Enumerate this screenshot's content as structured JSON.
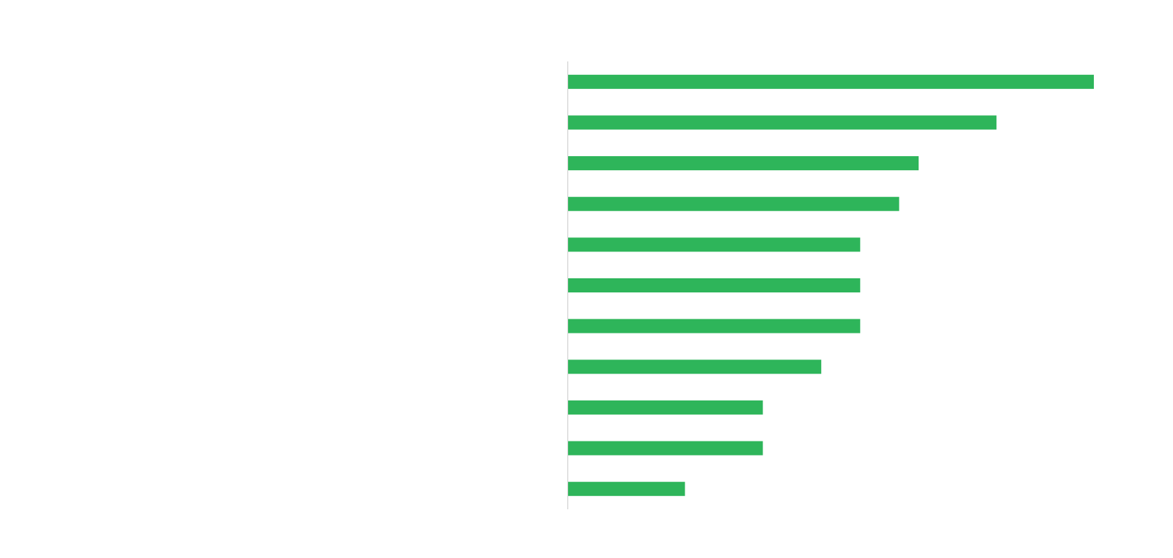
{
  "chart_data": {
    "type": "bar",
    "orientation": "horizontal",
    "categories": [
      null,
      null,
      null,
      null,
      null,
      null,
      null,
      null,
      null,
      null,
      null
    ],
    "values": [
      27,
      22,
      18,
      17,
      15,
      15,
      15,
      13,
      10,
      10,
      6
    ],
    "color": "#2eb55a",
    "xlim": [
      0,
      27
    ]
  }
}
